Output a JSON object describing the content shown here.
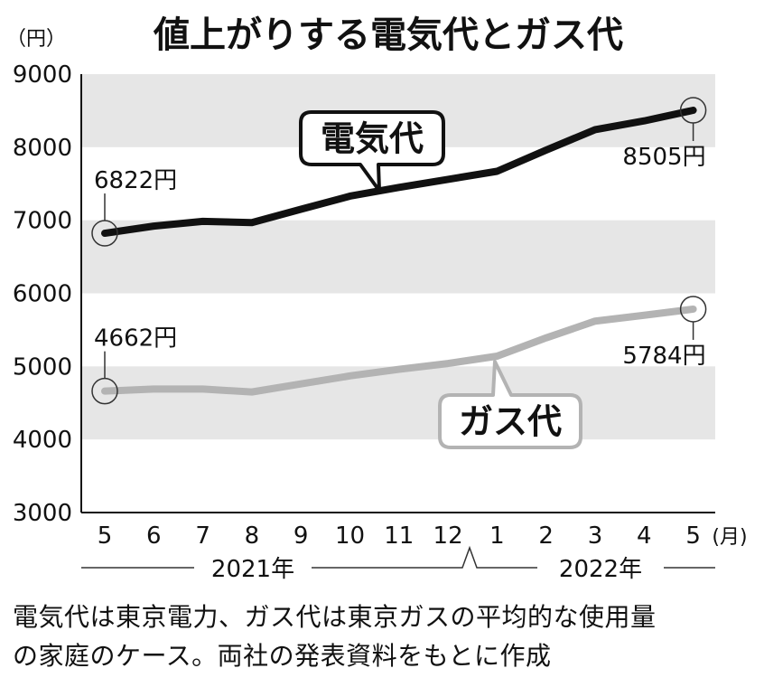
{
  "chart_data": {
    "type": "line",
    "title": "値上がりする電気代とガス代",
    "unit_label": "（円）",
    "x_unit_label": "(月)",
    "categories": [
      "5",
      "6",
      "7",
      "8",
      "9",
      "10",
      "11",
      "12",
      "1",
      "2",
      "3",
      "4",
      "5"
    ],
    "year_labels": [
      "2021年",
      "2022年"
    ],
    "ylim": [
      3000,
      9000
    ],
    "yticks": [
      "3000",
      "4000",
      "5000",
      "6000",
      "7000",
      "8000",
      "9000"
    ],
    "grid_bands": [
      [
        4000,
        5000
      ],
      [
        6000,
        7000
      ],
      [
        8000,
        9000
      ]
    ],
    "series": [
      {
        "name": "電気代",
        "color": "#111111",
        "values": [
          6822,
          6920,
          6985,
          6968,
          7150,
          7330,
          7450,
          7560,
          7670,
          7960,
          8240,
          8360,
          8505
        ],
        "start_label": "6822円",
        "end_label": "8505円"
      },
      {
        "name": "ガス代",
        "color": "#b3b3b3",
        "values": [
          4662,
          4690,
          4690,
          4650,
          4760,
          4870,
          4960,
          5040,
          5140,
          5390,
          5620,
          5700,
          5784
        ],
        "start_label": "4662円",
        "end_label": "5784円"
      }
    ]
  },
  "footnote": {
    "line1": "電気代は東京電力、ガス代は東京ガスの平均的な使用量",
    "line2": "の家庭のケース。両社の発表資料をもとに作成"
  }
}
